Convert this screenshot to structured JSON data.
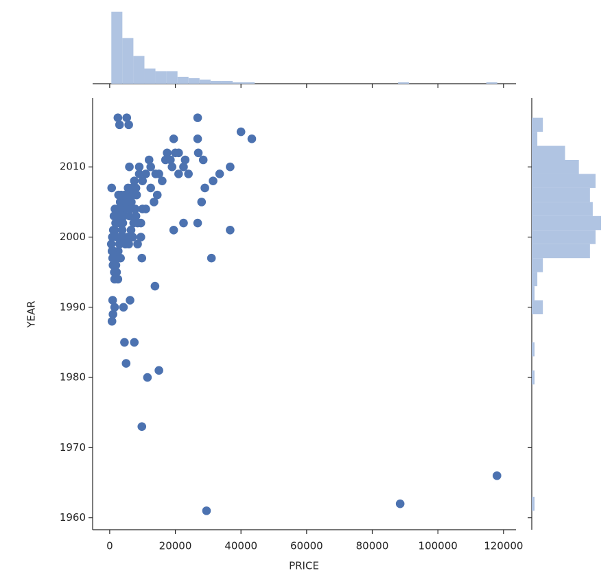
{
  "chart_data": [
    {
      "type": "scatter",
      "x_label": "PRICE",
      "y_label": "YEAR",
      "color": "#4c72b0",
      "x": [
        118000,
        88500,
        29500,
        9800,
        11500,
        15000,
        5000,
        4500,
        7500,
        700,
        1000,
        4200,
        1500,
        900,
        6200,
        13800,
        31000,
        9800,
        1500,
        2500,
        26800,
        22500,
        19500,
        36700,
        26800,
        26800,
        27000,
        28500,
        40000,
        43300,
        36700,
        33500,
        31500,
        29000,
        28000,
        2500,
        5200,
        3000,
        5800,
        19500,
        600,
        6000,
        9000,
        12000,
        12500,
        17500,
        18500,
        20000,
        21000,
        22500,
        23000,
        24000,
        21000,
        19000,
        16000,
        14500,
        13500,
        12500,
        11000,
        10000,
        9500,
        9500,
        8500,
        8000,
        7500,
        9000,
        8000,
        17000,
        14000,
        15000,
        11000,
        10000,
        500,
        800,
        1200,
        1500,
        1800,
        2000,
        2200,
        2500,
        2800,
        3000,
        3200,
        3500,
        3800,
        4000,
        4300,
        4600,
        5000,
        5300,
        5600,
        6000,
        6300,
        6600,
        7000,
        7300,
        1000,
        1400,
        1700,
        2600,
        3300,
        4100,
        4800,
        5500,
        6500,
        7000,
        3600,
        2900,
        2300,
        1100,
        900,
        1900,
        3100,
        4500,
        6800,
        7800,
        8200,
        8500,
        5800,
        2700,
        1600,
        1300,
        700,
        2100
      ],
      "values": [
        1966,
        1962,
        1961,
        1973,
        1980,
        1981,
        1982,
        1985,
        1985,
        1988,
        1989,
        1990,
        1990,
        1991,
        1991,
        1993,
        1997,
        1997,
        1994,
        1994,
        2002,
        2002,
        2001,
        2001,
        2017,
        2014,
        2012,
        2011,
        2015,
        2014,
        2010,
        2009,
        2008,
        2007,
        2005,
        2017,
        2017,
        2016,
        2016,
        2014,
        2007,
        2010,
        2010,
        2011,
        2010,
        2012,
        2011,
        2012,
        2012,
        2010,
        2011,
        2009,
        2009,
        2010,
        2008,
        2006,
        2005,
        2007,
        2004,
        2004,
        2002,
        2000,
        1999,
        2003,
        2008,
        2009,
        2007,
        2011,
        2009,
        2009,
        2009,
        2008,
        1999,
        2000,
        1998,
        2001,
        2002,
        1997,
        2003,
        2004,
        2000,
        1999,
        2005,
        2006,
        2001,
        2002,
        2003,
        2004,
        2005,
        2006,
        2007,
        2003,
        2004,
        2005,
        2006,
        2002,
        1996,
        1995,
        1997,
        1998,
        1997,
        2000,
        1999,
        2000,
        2001,
        2000,
        2003,
        2002,
        2000,
        2001,
        1997,
        1996,
        2004,
        2006,
        2007,
        2004,
        2006,
        2002,
        1999,
        2006,
        2004,
        2003,
        1998,
        1995
      ],
      "xlim": [
        -5200,
        123800
      ],
      "ylim": [
        1958.3,
        2019.8
      ],
      "xticks": [
        0,
        20000,
        40000,
        60000,
        80000,
        100000,
        120000
      ],
      "yticks": [
        1960,
        1970,
        1980,
        1990,
        2000,
        2010
      ]
    },
    {
      "type": "histogram",
      "orientation": "vertical",
      "color": "#b0c4e2",
      "bins": [
        500,
        3860,
        7220,
        10580,
        13940,
        17300,
        20660,
        24020,
        27380,
        30740,
        34100,
        37460,
        40820,
        44180,
        47540,
        50900,
        54260,
        57620,
        60980,
        64340,
        67700,
        71060,
        74420,
        77780,
        81140,
        84500,
        87860,
        91220,
        94580,
        97940,
        101300,
        104660,
        108020,
        111380,
        114740,
        118100
      ],
      "values": [
        52,
        33,
        20,
        11,
        9,
        9,
        5,
        4,
        3,
        2,
        2,
        1,
        1,
        0,
        0,
        0,
        0,
        0,
        0,
        0,
        0,
        0,
        0,
        0,
        0,
        0,
        1,
        0,
        0,
        0,
        0,
        0,
        0,
        0,
        1
      ]
    },
    {
      "type": "histogram",
      "orientation": "horizontal",
      "color": "#b0c4e2",
      "bins": [
        1961,
        1963,
        1965,
        1967,
        1969,
        1971,
        1973,
        1975,
        1977,
        1979,
        1981,
        1983,
        1985,
        1987,
        1989,
        1991,
        1993,
        1995,
        1997,
        1999,
        2001,
        2003,
        2005,
        2007,
        2009,
        2011,
        2013,
        2015,
        2017
      ],
      "values": [
        1,
        0,
        0,
        0,
        0,
        0,
        0,
        0,
        0,
        1,
        0,
        1,
        0,
        0,
        4,
        1,
        2,
        4,
        21,
        23,
        25,
        22,
        21,
        23,
        17,
        12,
        2,
        4
      ]
    }
  ]
}
